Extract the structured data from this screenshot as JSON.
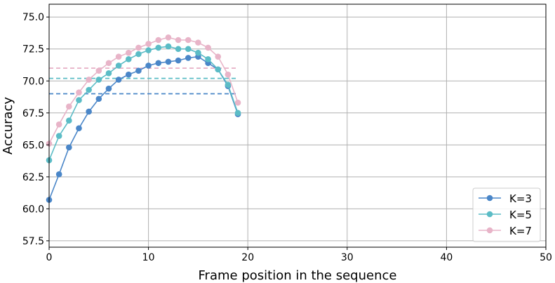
{
  "chart_data": {
    "type": "line",
    "title": "",
    "xlabel": "Frame position in the sequence",
    "ylabel": "Accuracy",
    "xlim": [
      0,
      50
    ],
    "ylim": [
      57,
      76
    ],
    "xticks": [
      0,
      10,
      20,
      30,
      40,
      50
    ],
    "xtick_labels": [
      "0",
      "10",
      "20",
      "30",
      "40",
      "50"
    ],
    "yticks": [
      57.5,
      60.0,
      62.5,
      65.0,
      67.5,
      70.0,
      72.5,
      75.0
    ],
    "ytick_labels": [
      "57.5",
      "60.0",
      "62.5",
      "65.0",
      "67.5",
      "70.0",
      "72.5",
      "75.0"
    ],
    "grid": true,
    "legend_position": "lower-right",
    "x": [
      0,
      1,
      2,
      3,
      4,
      5,
      6,
      7,
      8,
      9,
      10,
      11,
      12,
      13,
      14,
      15,
      16,
      17,
      18,
      19
    ],
    "series": [
      {
        "name": "K=3",
        "color": "#4a86c8",
        "values": [
          60.7,
          62.7,
          64.8,
          66.3,
          67.6,
          68.6,
          69.4,
          70.1,
          70.5,
          70.8,
          71.2,
          71.4,
          71.5,
          71.6,
          71.8,
          71.9,
          71.4,
          70.9,
          69.6,
          67.4
        ],
        "baseline": 69.0
      },
      {
        "name": "K=5",
        "color": "#5bbcc6",
        "values": [
          63.8,
          65.7,
          66.9,
          68.5,
          69.3,
          70.1,
          70.6,
          71.2,
          71.7,
          72.1,
          72.4,
          72.6,
          72.7,
          72.5,
          72.5,
          72.2,
          71.7,
          70.9,
          69.7,
          67.5
        ],
        "baseline": 70.2
      },
      {
        "name": "K=7",
        "color": "#e8b4c8",
        "values": [
          65.1,
          66.6,
          68.0,
          69.1,
          70.1,
          70.8,
          71.4,
          71.9,
          72.2,
          72.6,
          72.9,
          73.2,
          73.4,
          73.2,
          73.2,
          73.0,
          72.6,
          71.9,
          70.5,
          68.3
        ],
        "baseline": 71.0
      }
    ]
  }
}
